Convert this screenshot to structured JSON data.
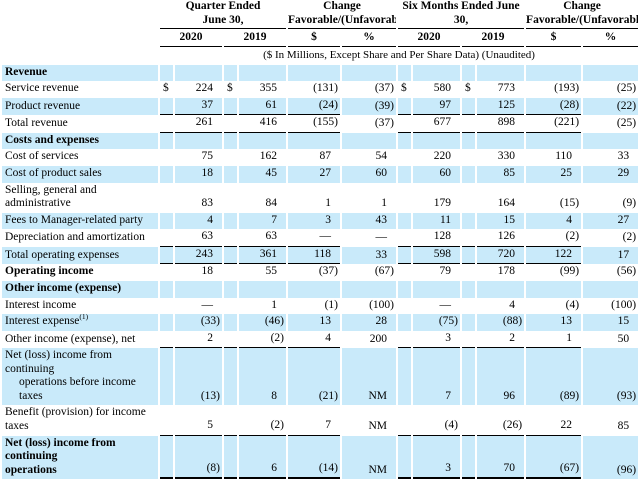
{
  "table": {
    "col_groups": [
      {
        "title_lines": [
          "Quarter Ended",
          "June 30,"
        ]
      },
      {
        "title_lines": [
          "Change",
          "Favorable/(Unfavorable)"
        ]
      },
      {
        "title_lines": [
          "Six Months Ended June",
          "30,"
        ]
      },
      {
        "title_lines": [
          "Change",
          "Favorable/(Unfavorable)"
        ]
      }
    ],
    "year_cols": [
      "2020",
      "2019",
      "$",
      "%",
      "2020",
      "2019",
      "$",
      "%"
    ],
    "subheader": "($ In Millions, Except Share and Per Share Data) (Unaudited)",
    "currency_symbol": "$",
    "stripe_color": "#c9eafa",
    "rows": [
      {
        "name": "section-revenue",
        "label": "Revenue",
        "section": true,
        "shade": true
      },
      {
        "name": "row-service-revenue",
        "label": "Service revenue",
        "shade": false,
        "dollar": true,
        "values": [
          "224",
          "355",
          "(131)",
          "(37)",
          "580",
          "773",
          "(193)",
          "(25)"
        ]
      },
      {
        "name": "row-product-revenue",
        "label": "Product revenue",
        "shade": true,
        "u": "s",
        "values": [
          "37",
          "61",
          "(24)",
          "(39)",
          "97",
          "125",
          "(28)",
          "(22)"
        ]
      },
      {
        "name": "row-total-revenue",
        "label": "Total revenue",
        "shade": false,
        "u": "s",
        "values": [
          "261",
          "416",
          "(155)",
          "(37)",
          "677",
          "898",
          "(221)",
          "(25)"
        ]
      },
      {
        "name": "section-costs-and-expenses",
        "label": "Costs and expenses",
        "section": true,
        "shade": true
      },
      {
        "name": "row-cost-of-services",
        "label": "Cost of services",
        "shade": false,
        "values": [
          "75",
          "162",
          "87",
          "54",
          "220",
          "330",
          "110",
          "33"
        ]
      },
      {
        "name": "row-cost-of-product-sales",
        "label": "Cost of product sales",
        "shade": true,
        "values": [
          "18",
          "45",
          "27",
          "60",
          "60",
          "85",
          "25",
          "29"
        ]
      },
      {
        "name": "row-selling-general-administrative",
        "label": "Selling, general and administrative",
        "shade": false,
        "values": [
          "83",
          "84",
          "1",
          "1",
          "179",
          "164",
          "(15)",
          "(9)"
        ]
      },
      {
        "name": "row-fees-to-manager",
        "label": "Fees to Manager-related party",
        "shade": true,
        "values": [
          "4",
          "7",
          "3",
          "43",
          "11",
          "15",
          "4",
          "27"
        ]
      },
      {
        "name": "row-depreciation-amortization",
        "label": "Depreciation and amortization",
        "shade": false,
        "u": "s",
        "values": [
          "63",
          "63",
          "—",
          "—",
          "128",
          "126",
          "(2)",
          "(2)"
        ]
      },
      {
        "name": "row-total-operating-expenses",
        "label": "Total operating expenses",
        "shade": true,
        "u": "s",
        "values": [
          "243",
          "361",
          "118",
          "33",
          "598",
          "720",
          "122",
          "17"
        ]
      },
      {
        "name": "row-operating-income",
        "label": "Operating income",
        "bold": true,
        "shade": false,
        "values": [
          "18",
          "55",
          "(37)",
          "(67)",
          "79",
          "178",
          "(99)",
          "(56)"
        ]
      },
      {
        "name": "section-other-income-expense",
        "label": "Other income (expense)",
        "section": true,
        "shade": true
      },
      {
        "name": "row-interest-income",
        "label": "Interest income",
        "shade": false,
        "values": [
          "—",
          "1",
          "(1)",
          "(100)",
          "—",
          "4",
          "(4)",
          "(100)"
        ]
      },
      {
        "name": "row-interest-expense",
        "label": "Interest expense",
        "sup": "(1)",
        "shade": true,
        "values": [
          "(33)",
          "(46)",
          "13",
          "28",
          "(75)",
          "(88)",
          "13",
          "15"
        ]
      },
      {
        "name": "row-other-income-net",
        "label": "Other income (expense), net",
        "shade": false,
        "u": "s",
        "values": [
          "2",
          "(2)",
          "4",
          "200",
          "3",
          "2",
          "1",
          "50"
        ]
      },
      {
        "name": "row-net-income-before-taxes",
        "label": "Net (loss) income from continuing",
        "label2": "operations before income taxes",
        "ind": true,
        "shade": true,
        "values": [
          "(13)",
          "8",
          "(21)",
          "NM",
          "7",
          "96",
          "(89)",
          "(93)"
        ]
      },
      {
        "name": "row-benefit-provision-income-taxes",
        "label": "Benefit (provision) for income taxes",
        "shade": false,
        "u": "s",
        "values": [
          "5",
          "(2)",
          "7",
          "NM",
          "(4)",
          "(26)",
          "22",
          "85"
        ]
      },
      {
        "name": "row-net-income-continuing-operations",
        "label": "Net (loss) income from continuing",
        "label2": "operations",
        "bold": true,
        "shade": true,
        "u": "d",
        "values": [
          "(8)",
          "6",
          "(14)",
          "NM",
          "3",
          "70",
          "(67)",
          "(96)"
        ]
      }
    ]
  }
}
